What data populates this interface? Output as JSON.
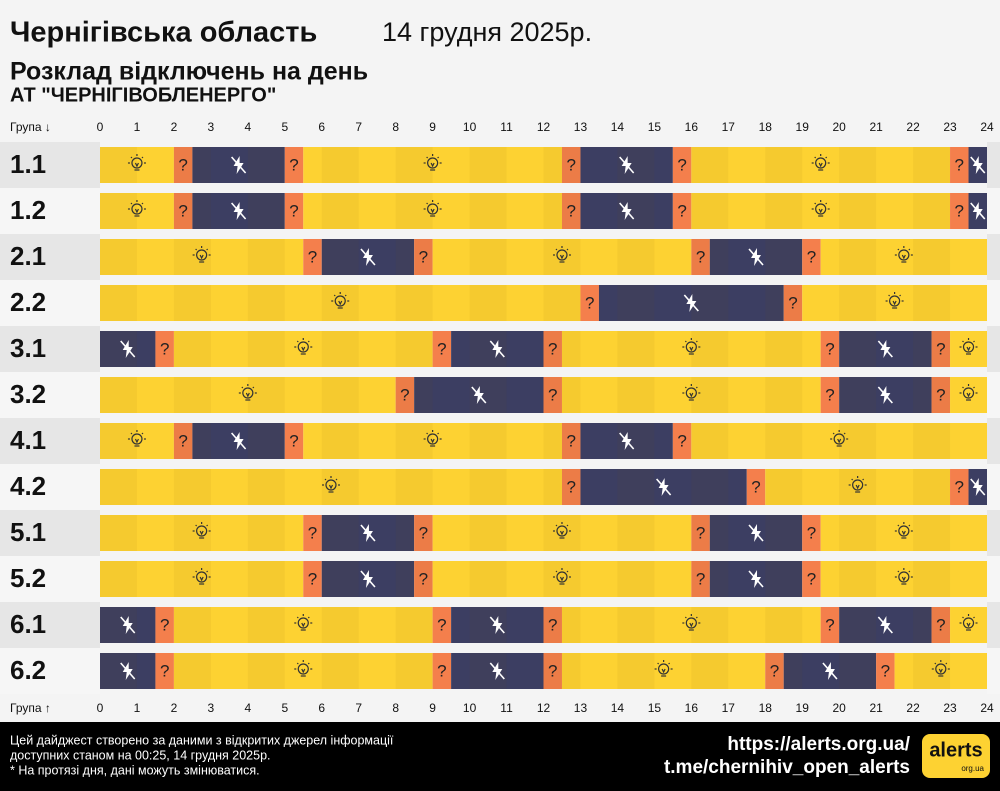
{
  "chart_data": {
    "type": "timeline",
    "title": "Чернігівська область",
    "date": "14 грудня 2025р.",
    "subtitle": "Розклад відключень на день",
    "company": "АТ \"ЧЕРНІГІВОБЛЕНЕРГО\"",
    "axis_label_top": "Група ↓",
    "axis_label_bottom": "Група ↑",
    "maybe_label": "?",
    "xlim": [
      0,
      24
    ],
    "xticks": [
      0,
      1,
      2,
      3,
      4,
      5,
      6,
      7,
      8,
      9,
      10,
      11,
      12,
      13,
      14,
      15,
      16,
      17,
      18,
      19,
      20,
      21,
      22,
      23,
      24
    ],
    "colors": {
      "on": "#fdd232",
      "off": "#3c3e62",
      "maybe": "#f47f4c"
    },
    "groups": [
      {
        "name": "1.1",
        "segments": [
          {
            "start": 0,
            "end": 2,
            "state": "on"
          },
          {
            "start": 2,
            "end": 2.5,
            "state": "maybe"
          },
          {
            "start": 2.5,
            "end": 5,
            "state": "off"
          },
          {
            "start": 5,
            "end": 5.5,
            "state": "maybe"
          },
          {
            "start": 5.5,
            "end": 12.5,
            "state": "on"
          },
          {
            "start": 12.5,
            "end": 13,
            "state": "maybe"
          },
          {
            "start": 13,
            "end": 15.5,
            "state": "off"
          },
          {
            "start": 15.5,
            "end": 16,
            "state": "maybe"
          },
          {
            "start": 16,
            "end": 23,
            "state": "on"
          },
          {
            "start": 23,
            "end": 23.5,
            "state": "maybe"
          },
          {
            "start": 23.5,
            "end": 24,
            "state": "off"
          }
        ]
      },
      {
        "name": "1.2",
        "segments": [
          {
            "start": 0,
            "end": 2,
            "state": "on"
          },
          {
            "start": 2,
            "end": 2.5,
            "state": "maybe"
          },
          {
            "start": 2.5,
            "end": 5,
            "state": "off"
          },
          {
            "start": 5,
            "end": 5.5,
            "state": "maybe"
          },
          {
            "start": 5.5,
            "end": 12.5,
            "state": "on"
          },
          {
            "start": 12.5,
            "end": 13,
            "state": "maybe"
          },
          {
            "start": 13,
            "end": 15.5,
            "state": "off"
          },
          {
            "start": 15.5,
            "end": 16,
            "state": "maybe"
          },
          {
            "start": 16,
            "end": 23,
            "state": "on"
          },
          {
            "start": 23,
            "end": 23.5,
            "state": "maybe"
          },
          {
            "start": 23.5,
            "end": 24,
            "state": "off"
          }
        ]
      },
      {
        "name": "2.1",
        "segments": [
          {
            "start": 0,
            "end": 5.5,
            "state": "on"
          },
          {
            "start": 5.5,
            "end": 6,
            "state": "maybe"
          },
          {
            "start": 6,
            "end": 8.5,
            "state": "off"
          },
          {
            "start": 8.5,
            "end": 9,
            "state": "maybe"
          },
          {
            "start": 9,
            "end": 16,
            "state": "on"
          },
          {
            "start": 16,
            "end": 16.5,
            "state": "maybe"
          },
          {
            "start": 16.5,
            "end": 19,
            "state": "off"
          },
          {
            "start": 19,
            "end": 19.5,
            "state": "maybe"
          },
          {
            "start": 19.5,
            "end": 24,
            "state": "on"
          }
        ]
      },
      {
        "name": "2.2",
        "segments": [
          {
            "start": 0,
            "end": 13,
            "state": "on"
          },
          {
            "start": 13,
            "end": 13.5,
            "state": "maybe"
          },
          {
            "start": 13.5,
            "end": 18.5,
            "state": "off"
          },
          {
            "start": 18.5,
            "end": 19,
            "state": "maybe"
          },
          {
            "start": 19,
            "end": 24,
            "state": "on"
          }
        ]
      },
      {
        "name": "3.1",
        "segments": [
          {
            "start": 0,
            "end": 1.5,
            "state": "off"
          },
          {
            "start": 1.5,
            "end": 2,
            "state": "maybe"
          },
          {
            "start": 2,
            "end": 9,
            "state": "on"
          },
          {
            "start": 9,
            "end": 9.5,
            "state": "maybe"
          },
          {
            "start": 9.5,
            "end": 12,
            "state": "off"
          },
          {
            "start": 12,
            "end": 12.5,
            "state": "maybe"
          },
          {
            "start": 12.5,
            "end": 19.5,
            "state": "on"
          },
          {
            "start": 19.5,
            "end": 20,
            "state": "maybe"
          },
          {
            "start": 20,
            "end": 22.5,
            "state": "off"
          },
          {
            "start": 22.5,
            "end": 23,
            "state": "maybe"
          },
          {
            "start": 23,
            "end": 24,
            "state": "on"
          }
        ]
      },
      {
        "name": "3.2",
        "segments": [
          {
            "start": 0,
            "end": 8,
            "state": "on"
          },
          {
            "start": 8,
            "end": 8.5,
            "state": "maybe"
          },
          {
            "start": 8.5,
            "end": 12,
            "state": "off"
          },
          {
            "start": 12,
            "end": 12.5,
            "state": "maybe"
          },
          {
            "start": 12.5,
            "end": 19.5,
            "state": "on"
          },
          {
            "start": 19.5,
            "end": 20,
            "state": "maybe"
          },
          {
            "start": 20,
            "end": 22.5,
            "state": "off"
          },
          {
            "start": 22.5,
            "end": 23,
            "state": "maybe"
          },
          {
            "start": 23,
            "end": 24,
            "state": "on"
          }
        ]
      },
      {
        "name": "4.1",
        "segments": [
          {
            "start": 0,
            "end": 2,
            "state": "on"
          },
          {
            "start": 2,
            "end": 2.5,
            "state": "maybe"
          },
          {
            "start": 2.5,
            "end": 5,
            "state": "off"
          },
          {
            "start": 5,
            "end": 5.5,
            "state": "maybe"
          },
          {
            "start": 5.5,
            "end": 12.5,
            "state": "on"
          },
          {
            "start": 12.5,
            "end": 13,
            "state": "maybe"
          },
          {
            "start": 13,
            "end": 15.5,
            "state": "off"
          },
          {
            "start": 15.5,
            "end": 16,
            "state": "maybe"
          },
          {
            "start": 16,
            "end": 24,
            "state": "on"
          }
        ]
      },
      {
        "name": "4.2",
        "segments": [
          {
            "start": 0,
            "end": 12.5,
            "state": "on"
          },
          {
            "start": 12.5,
            "end": 13,
            "state": "maybe"
          },
          {
            "start": 13,
            "end": 17.5,
            "state": "off"
          },
          {
            "start": 17.5,
            "end": 18,
            "state": "maybe"
          },
          {
            "start": 18,
            "end": 23,
            "state": "on"
          },
          {
            "start": 23,
            "end": 23.5,
            "state": "maybe"
          },
          {
            "start": 23.5,
            "end": 24,
            "state": "off"
          }
        ]
      },
      {
        "name": "5.1",
        "segments": [
          {
            "start": 0,
            "end": 5.5,
            "state": "on"
          },
          {
            "start": 5.5,
            "end": 6,
            "state": "maybe"
          },
          {
            "start": 6,
            "end": 8.5,
            "state": "off"
          },
          {
            "start": 8.5,
            "end": 9,
            "state": "maybe"
          },
          {
            "start": 9,
            "end": 16,
            "state": "on"
          },
          {
            "start": 16,
            "end": 16.5,
            "state": "maybe"
          },
          {
            "start": 16.5,
            "end": 19,
            "state": "off"
          },
          {
            "start": 19,
            "end": 19.5,
            "state": "maybe"
          },
          {
            "start": 19.5,
            "end": 24,
            "state": "on"
          }
        ]
      },
      {
        "name": "5.2",
        "segments": [
          {
            "start": 0,
            "end": 5.5,
            "state": "on"
          },
          {
            "start": 5.5,
            "end": 6,
            "state": "maybe"
          },
          {
            "start": 6,
            "end": 8.5,
            "state": "off"
          },
          {
            "start": 8.5,
            "end": 9,
            "state": "maybe"
          },
          {
            "start": 9,
            "end": 16,
            "state": "on"
          },
          {
            "start": 16,
            "end": 16.5,
            "state": "maybe"
          },
          {
            "start": 16.5,
            "end": 19,
            "state": "off"
          },
          {
            "start": 19,
            "end": 19.5,
            "state": "maybe"
          },
          {
            "start": 19.5,
            "end": 24,
            "state": "on"
          }
        ]
      },
      {
        "name": "6.1",
        "segments": [
          {
            "start": 0,
            "end": 1.5,
            "state": "off"
          },
          {
            "start": 1.5,
            "end": 2,
            "state": "maybe"
          },
          {
            "start": 2,
            "end": 9,
            "state": "on"
          },
          {
            "start": 9,
            "end": 9.5,
            "state": "maybe"
          },
          {
            "start": 9.5,
            "end": 12,
            "state": "off"
          },
          {
            "start": 12,
            "end": 12.5,
            "state": "maybe"
          },
          {
            "start": 12.5,
            "end": 19.5,
            "state": "on"
          },
          {
            "start": 19.5,
            "end": 20,
            "state": "maybe"
          },
          {
            "start": 20,
            "end": 22.5,
            "state": "off"
          },
          {
            "start": 22.5,
            "end": 23,
            "state": "maybe"
          },
          {
            "start": 23,
            "end": 24,
            "state": "on"
          }
        ]
      },
      {
        "name": "6.2",
        "segments": [
          {
            "start": 0,
            "end": 1.5,
            "state": "off"
          },
          {
            "start": 1.5,
            "end": 2,
            "state": "maybe"
          },
          {
            "start": 2,
            "end": 9,
            "state": "on"
          },
          {
            "start": 9,
            "end": 9.5,
            "state": "maybe"
          },
          {
            "start": 9.5,
            "end": 12,
            "state": "off"
          },
          {
            "start": 12,
            "end": 12.5,
            "state": "maybe"
          },
          {
            "start": 12.5,
            "end": 18,
            "state": "on"
          },
          {
            "start": 18,
            "end": 18.5,
            "state": "maybe"
          },
          {
            "start": 18.5,
            "end": 21,
            "state": "off"
          },
          {
            "start": 21,
            "end": 21.5,
            "state": "maybe"
          },
          {
            "start": 21.5,
            "end": 24,
            "state": "on"
          }
        ]
      }
    ]
  },
  "footer": {
    "note_lines": [
      "Цей дайджест створено за даними з відкритих джерел інформації",
      "доступних станом на 00:25, 14 грудня 2025р.",
      "* На протязі дня, дані можуть змінюватися."
    ],
    "links": [
      "https://alerts.org.ua/",
      "t.me/chernihiv_open_alerts"
    ],
    "logo": {
      "text": "alerts",
      "subtext": "org.ua"
    }
  }
}
